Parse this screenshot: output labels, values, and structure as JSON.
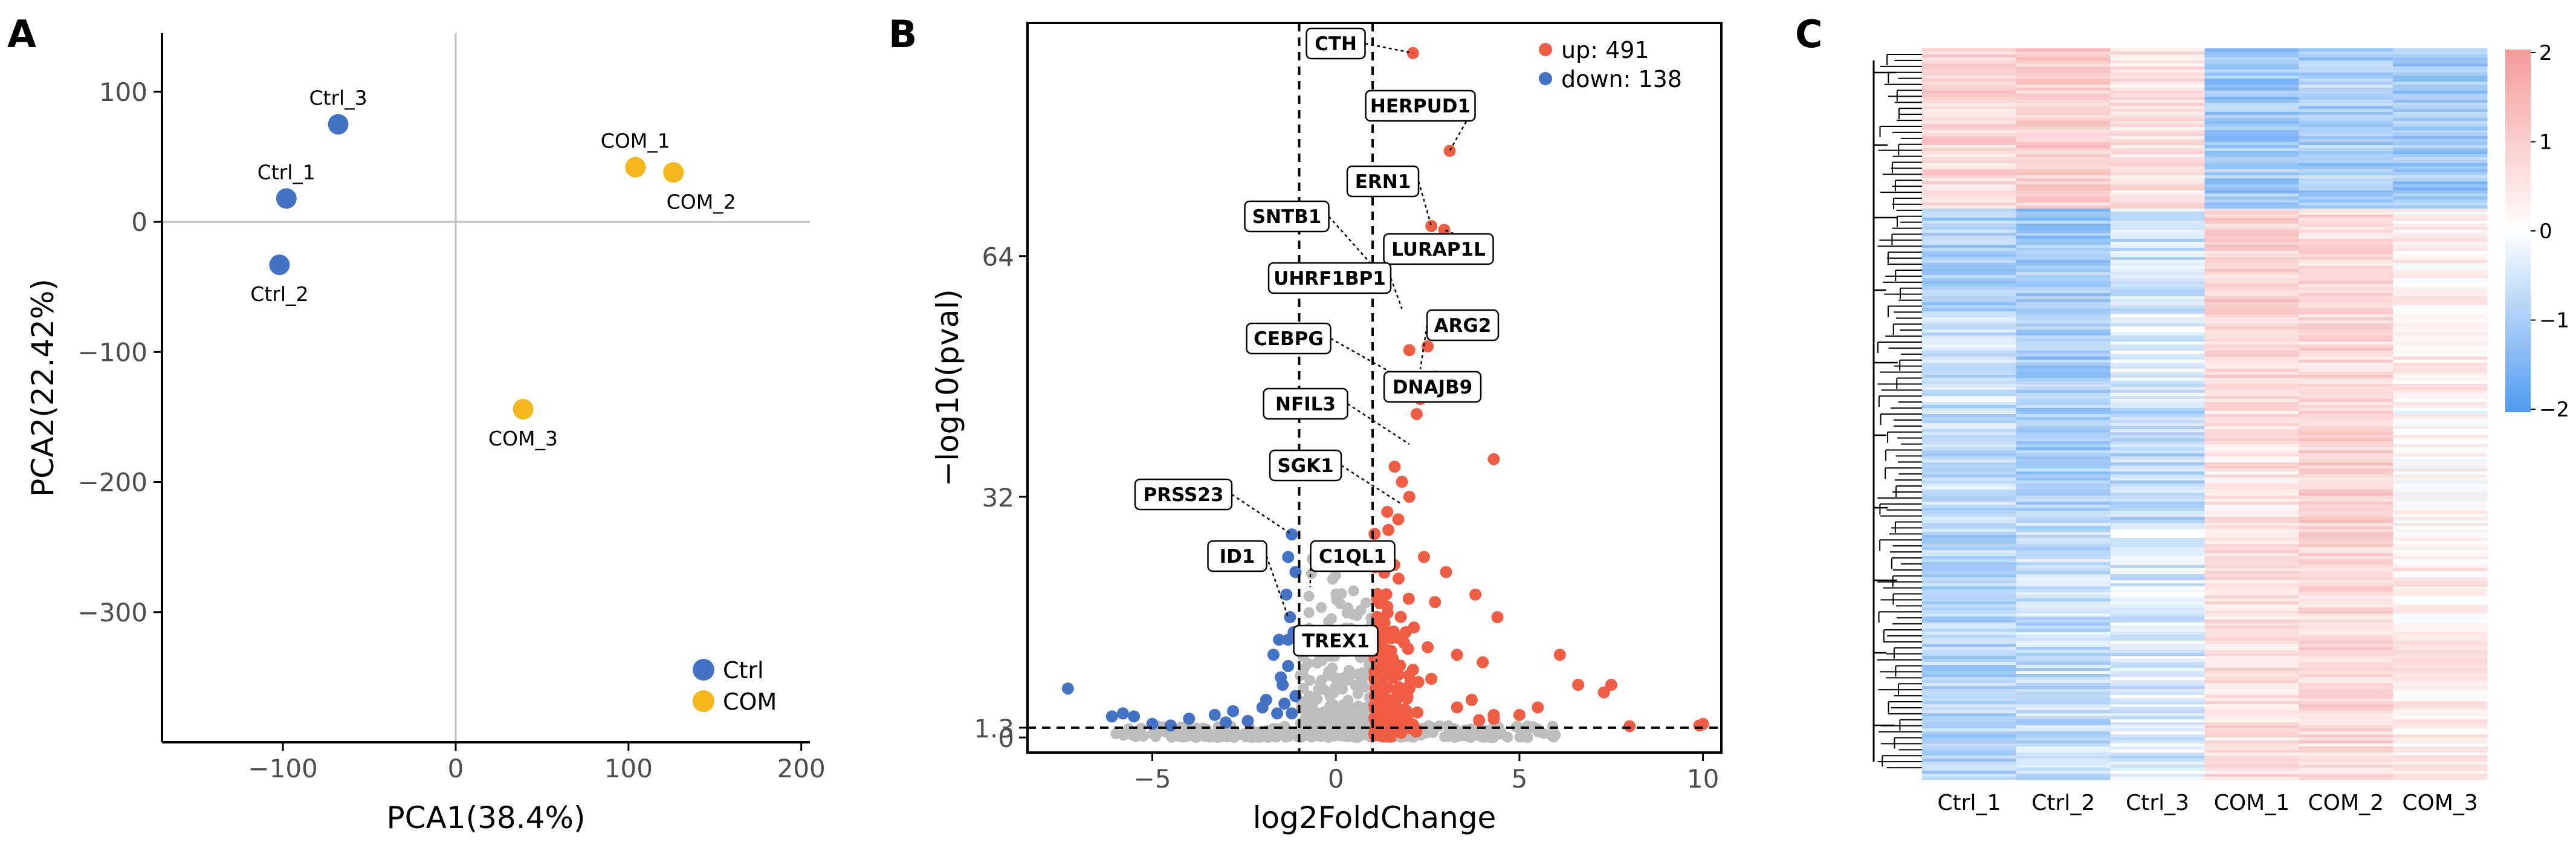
{
  "colors": {
    "ctrl": "#4472c4",
    "com": "#f5b71e",
    "up": "#f05d45",
    "down": "#4472c4",
    "ns": "#bdbdbd",
    "heat_low": "#4f9bf0",
    "heat_mid": "#ffffff",
    "heat_high": "#f59a9a"
  },
  "chart_data": [
    {
      "panel": "A",
      "type": "scatter",
      "title": "",
      "xlabel": "PCA1(38.4%)",
      "ylabel": "PCA2(22.42%)",
      "xlim": [
        -170,
        205
      ],
      "ylim": [
        -400,
        145
      ],
      "xticks": [
        -100,
        0,
        100,
        200
      ],
      "yticks": [
        100,
        0,
        -100,
        -200,
        -300
      ],
      "xtick_labels": [
        "−100",
        "0",
        "100",
        "200"
      ],
      "ytick_labels": [
        "100",
        "0",
        "−100",
        "−200",
        "−300"
      ],
      "reference_lines": {
        "x": 0,
        "y": 0
      },
      "legend": [
        {
          "label": "Ctrl",
          "color_key": "ctrl"
        },
        {
          "label": "COM",
          "color_key": "com"
        }
      ],
      "points": [
        {
          "label": "Ctrl_3",
          "x": -68,
          "y": 75,
          "group": "ctrl",
          "label_side": "above"
        },
        {
          "label": "Ctrl_1",
          "x": -98,
          "y": 18,
          "group": "ctrl",
          "label_side": "above"
        },
        {
          "label": "Ctrl_2",
          "x": -102,
          "y": -33,
          "group": "ctrl",
          "label_side": "below"
        },
        {
          "label": "COM_1",
          "x": 104,
          "y": 42,
          "group": "com",
          "label_side": "above"
        },
        {
          "label": "COM_2",
          "x": 126,
          "y": 38,
          "group": "com",
          "label_side": "below"
        },
        {
          "label": "COM_3",
          "x": 39,
          "y": -144,
          "group": "com",
          "label_side": "below"
        }
      ]
    },
    {
      "panel": "B",
      "type": "scatter",
      "title": "",
      "xlabel": "log2FoldChange",
      "ylabel": "−log10(pval)",
      "xlim": [
        -8.4,
        10.5
      ],
      "ylim": [
        -2,
        95
      ],
      "xticks": [
        -5,
        0,
        5,
        10
      ],
      "xtick_labels": [
        "−5",
        "0",
        "5",
        "10"
      ],
      "yticks": [
        0,
        1.3,
        32,
        64
      ],
      "ytick_labels": [
        "0",
        "1.3",
        "32",
        "64"
      ],
      "fc_threshold": [
        -1,
        1
      ],
      "p_threshold": 1.3,
      "legend": [
        {
          "label": "up: 491",
          "color_key": "up"
        },
        {
          "label": "down: 138",
          "color_key": "down"
        }
      ],
      "up_points": [
        [
          2.1,
          91
        ],
        [
          3.1,
          78
        ],
        [
          2.6,
          68
        ],
        [
          2.95,
          67.5
        ],
        [
          2.5,
          52
        ],
        [
          2.0,
          51.5
        ],
        [
          2.7,
          48
        ],
        [
          2.3,
          45
        ],
        [
          2.2,
          43
        ],
        [
          4.3,
          37
        ],
        [
          1.6,
          36
        ],
        [
          1.8,
          34
        ],
        [
          2.0,
          32
        ],
        [
          1.4,
          30
        ],
        [
          1.7,
          29
        ],
        [
          2.4,
          24
        ],
        [
          3.0,
          22
        ],
        [
          3.8,
          19
        ],
        [
          2.7,
          18
        ],
        [
          4.4,
          16
        ],
        [
          1.9,
          14
        ],
        [
          2.5,
          12
        ],
        [
          3.3,
          11
        ],
        [
          4.0,
          10
        ],
        [
          2.1,
          9
        ],
        [
          6.1,
          11
        ],
        [
          6.6,
          7
        ],
        [
          7.3,
          6
        ],
        [
          7.5,
          7
        ],
        [
          8.0,
          1.5
        ],
        [
          10.0,
          1.8
        ],
        [
          9.9,
          1.6
        ],
        [
          5.5,
          4
        ],
        [
          5.0,
          3
        ],
        [
          4.3,
          3
        ],
        [
          3.9,
          2.3
        ],
        [
          3.3,
          4
        ],
        [
          3.7,
          5
        ],
        [
          2.0,
          6.5
        ],
        [
          1.5,
          5
        ],
        [
          2.6,
          7.8
        ],
        [
          4.3,
          2.5
        ]
      ],
      "down_points": [
        [
          -1.2,
          27
        ],
        [
          -1.3,
          24
        ],
        [
          -1.1,
          22
        ],
        [
          -1.35,
          19
        ],
        [
          -1.25,
          16
        ],
        [
          -1.15,
          14
        ],
        [
          -1.3,
          13
        ],
        [
          -1.55,
          13
        ],
        [
          -1.7,
          11
        ],
        [
          -1.5,
          8
        ],
        [
          -1.45,
          7
        ],
        [
          -1.9,
          5
        ],
        [
          -2.0,
          4
        ],
        [
          -2.8,
          3.5
        ],
        [
          -3.3,
          3
        ],
        [
          -4.0,
          2.5
        ],
        [
          -5.5,
          2.8
        ],
        [
          -5.8,
          3.2
        ],
        [
          -6.1,
          2.8
        ],
        [
          -7.3,
          6.5
        ],
        [
          -5.0,
          1.8
        ],
        [
          -4.5,
          1.6
        ],
        [
          -3.0,
          2.0
        ],
        [
          -2.4,
          2.2
        ],
        [
          -1.6,
          3.2
        ],
        [
          -1.4,
          4.5
        ],
        [
          -1.2,
          3.2
        ],
        [
          -1.1,
          5.5
        ],
        [
          -1.3,
          9.5
        ]
      ],
      "labelled_genes": [
        {
          "gene": "CTH",
          "x": 2.1,
          "y": 91
        },
        {
          "gene": "HERPUD1",
          "x": 3.1,
          "y": 78
        },
        {
          "gene": "ERN1",
          "x": 2.6,
          "y": 68
        },
        {
          "gene": "LURAP1L",
          "x": 2.95,
          "y": 67.5
        },
        {
          "gene": "SNTB1",
          "x": 1.5,
          "y": 60
        },
        {
          "gene": "UHRF1BP1",
          "x": 1.8,
          "y": 57
        },
        {
          "gene": "ARG2",
          "x": 2.3,
          "y": 49
        },
        {
          "gene": "CEBPG",
          "x": 1.7,
          "y": 48
        },
        {
          "gene": "DNAJB9",
          "x": 2.5,
          "y": 45
        },
        {
          "gene": "NFIL3",
          "x": 2.0,
          "y": 39
        },
        {
          "gene": "SGK1",
          "x": 1.8,
          "y": 31
        },
        {
          "gene": "PRSS23",
          "x": -1.2,
          "y": 27
        },
        {
          "gene": "C1QL1",
          "x": -0.7,
          "y": 20
        },
        {
          "gene": "ID1",
          "x": -1.3,
          "y": 16
        },
        {
          "gene": "TREX1",
          "x": 1.1,
          "y": 10
        }
      ]
    },
    {
      "panel": "C",
      "type": "heatmap",
      "title": "",
      "columns": [
        "Ctrl_1",
        "Ctrl_2",
        "Ctrl_3",
        "COM_1",
        "COM_2",
        "COM_3"
      ],
      "color_range": [
        -2,
        2
      ],
      "colorbar_ticks": [
        2,
        1,
        0,
        -1,
        -2
      ],
      "colorbar_tick_labels": [
        "2",
        "1",
        "0",
        "−1",
        "−2"
      ],
      "row_blocks": [
        {
          "fraction": 0.22,
          "values": [
            0.8,
            1.0,
            0.55,
            -1.1,
            -0.95,
            -1.05
          ]
        },
        {
          "fraction": 0.14,
          "values": [
            -0.95,
            -1.1,
            -0.6,
            0.9,
            0.75,
            0.3
          ]
        },
        {
          "fraction": 0.13,
          "values": [
            -0.55,
            -1.0,
            -0.45,
            0.75,
            0.75,
            0.4
          ]
        },
        {
          "fraction": 0.16,
          "values": [
            -0.7,
            -1.0,
            -0.8,
            0.55,
            0.95,
            0.15
          ]
        },
        {
          "fraction": 0.35,
          "values": [
            -0.85,
            -0.65,
            -0.45,
            0.65,
            0.75,
            0.35
          ]
        }
      ]
    }
  ]
}
